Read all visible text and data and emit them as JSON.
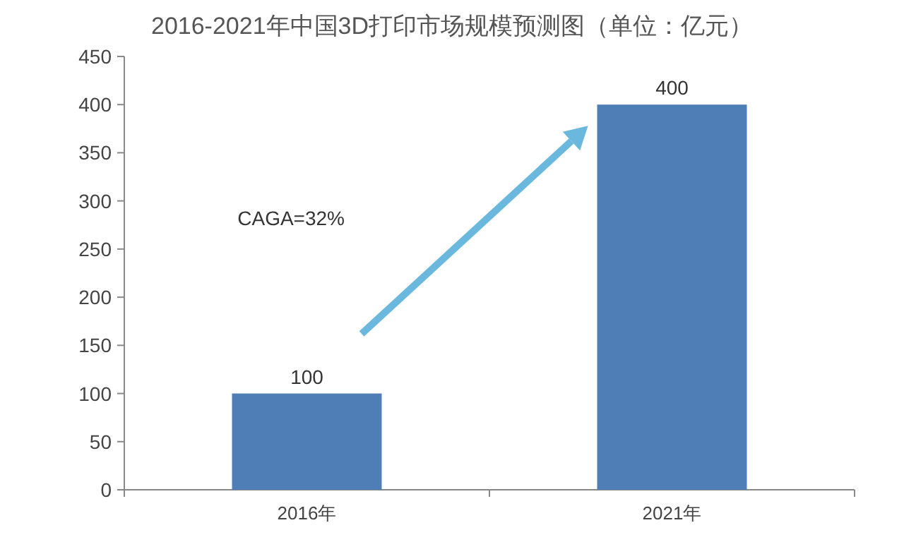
{
  "chart_data": {
    "type": "bar",
    "title": "2016-2021年中国3D打印市场规模预测图（单位：亿元）",
    "categories": [
      "2016年",
      "2021年"
    ],
    "series": [
      {
        "color": "#4f7db5",
        "values": [
          100,
          400
        ]
      }
    ],
    "ylim": [
      0,
      450
    ],
    "yticks": [
      0,
      50,
      100,
      150,
      200,
      250,
      300,
      350,
      400,
      450
    ],
    "data_labels": true,
    "grid": false,
    "annotations": [
      "CAGA=32%"
    ]
  }
}
